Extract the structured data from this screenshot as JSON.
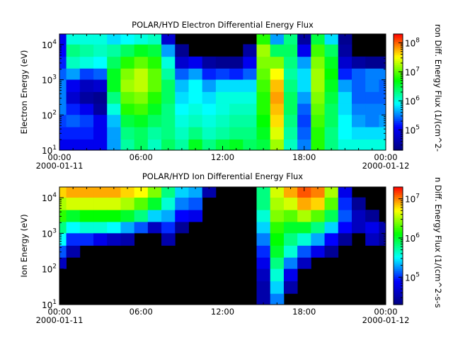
{
  "chart_data": [
    {
      "type": "heatmap",
      "title": "POLAR/HYD  Electron Differential Energy Flux",
      "ylabel": "Electron Energy (eV)",
      "colorbar_label": "ron Diff. Energy Flux (1/(cm^2-",
      "xlim": [
        "2000-01-11 00:00",
        "2000-01-12 00:00"
      ],
      "x_ticks": [
        "00:00",
        "06:00",
        "12:00",
        "18:00",
        "00:00"
      ],
      "x_date_left": "2000-01-11",
      "x_date_right": "2000-01-12",
      "y_scale": "log",
      "ylim": [
        10,
        20000
      ],
      "y_ticks": [
        {
          "value": 10,
          "base": "10",
          "exp": "1"
        },
        {
          "value": 100,
          "base": "10",
          "exp": "2"
        },
        {
          "value": 1000,
          "base": "10",
          "exp": "3"
        },
        {
          "value": 10000,
          "base": "10",
          "exp": "4"
        }
      ],
      "colorbar_scale": "log",
      "colorbar_range": [
        20000,
        200000000
      ],
      "colorbar_ticks": [
        {
          "value": 100000,
          "base": "10",
          "exp": "5"
        },
        {
          "value": 1000000,
          "base": "10",
          "exp": "6"
        },
        {
          "value": 10000000,
          "base": "10",
          "exp": "7"
        },
        {
          "value": 100000000,
          "base": "10",
          "exp": "8"
        }
      ],
      "colormap": [
        "#000080",
        "#0000ff",
        "#00ffff",
        "#00ff00",
        "#ffff00",
        "#ff0000"
      ],
      "background_color": "#000000",
      "time_hours": [
        0,
        1,
        2,
        3,
        4,
        5,
        6,
        7,
        8,
        9,
        10,
        11,
        12,
        13,
        14,
        15,
        16,
        17,
        18,
        19,
        20,
        21,
        22,
        23,
        24
      ],
      "energy_ev": [
        14,
        30,
        70,
        150,
        300,
        700,
        1500,
        3000,
        7000,
        15000
      ],
      "log10_flux": [
        [
          5.0,
          5.2,
          5.3,
          5.5,
          5.5,
          5.5,
          5.4,
          5.2,
          5.1,
          5.0
        ],
        [
          5.0,
          5.2,
          5.4,
          5.2,
          4.8,
          5.0,
          5.6,
          6.1,
          6.3,
          6.0
        ],
        [
          5.0,
          5.2,
          5.3,
          5.0,
          4.5,
          4.7,
          5.3,
          6.0,
          6.2,
          6.0
        ],
        [
          5.0,
          5.0,
          5.0,
          4.5,
          4.4,
          4.8,
          5.4,
          5.9,
          6.1,
          6.0
        ],
        [
          5.6,
          5.6,
          5.7,
          6.0,
          6.3,
          6.6,
          6.6,
          6.4,
          6.2,
          5.8
        ],
        [
          6.2,
          6.3,
          6.5,
          6.8,
          7.0,
          7.2,
          7.1,
          6.8,
          6.4,
          5.9
        ],
        [
          6.4,
          6.4,
          6.6,
          6.9,
          7.1,
          7.3,
          7.3,
          7.0,
          6.6,
          6.0
        ],
        [
          6.1,
          6.2,
          6.4,
          6.6,
          6.8,
          7.0,
          7.0,
          6.8,
          6.5,
          6.1
        ],
        [
          6.4,
          6.3,
          6.3,
          6.3,
          6.4,
          6.4,
          6.2,
          6.0,
          5.6,
          4.8
        ],
        [
          6.2,
          6.1,
          6.0,
          5.9,
          5.8,
          5.7,
          5.4,
          4.8,
          4.4,
          4.0
        ],
        [
          6.6,
          6.3,
          6.1,
          6.0,
          5.9,
          5.9,
          5.6,
          5.0,
          4.0,
          4.0
        ],
        [
          6.3,
          6.1,
          6.0,
          5.9,
          5.8,
          5.6,
          5.2,
          4.5,
          4.0,
          4.0
        ],
        [
          6.5,
          6.2,
          6.1,
          6.0,
          6.0,
          5.8,
          5.3,
          4.4,
          4.0,
          4.0
        ],
        [
          6.6,
          6.3,
          6.2,
          6.1,
          6.0,
          5.8,
          5.2,
          4.4,
          4.0,
          4.0
        ],
        [
          6.4,
          6.3,
          6.2,
          6.1,
          6.0,
          5.8,
          5.4,
          5.0,
          4.5,
          4.0
        ],
        [
          6.5,
          6.6,
          6.7,
          6.8,
          6.8,
          6.9,
          7.0,
          7.1,
          7.2,
          6.8
        ],
        [
          7.2,
          7.4,
          7.6,
          7.7,
          7.8,
          7.7,
          7.5,
          7.1,
          6.4,
          5.6
        ],
        [
          6.1,
          6.2,
          6.3,
          6.4,
          6.4,
          6.3,
          6.2,
          6.3,
          6.4,
          6.3
        ],
        [
          5.5,
          5.4,
          5.3,
          5.4,
          5.6,
          5.8,
          5.8,
          5.6,
          5.0,
          4.5
        ],
        [
          6.8,
          6.8,
          6.9,
          7.0,
          7.1,
          7.2,
          7.2,
          7.1,
          6.9,
          6.5
        ],
        [
          6.3,
          6.3,
          6.4,
          6.4,
          6.5,
          6.6,
          6.7,
          6.6,
          6.4,
          5.8
        ],
        [
          6.0,
          5.9,
          5.9,
          5.8,
          5.8,
          5.6,
          5.2,
          4.8,
          4.5,
          4.4
        ],
        [
          6.0,
          5.8,
          5.6,
          5.5,
          5.4,
          5.4,
          5.4,
          4.5,
          4.0,
          4.0
        ],
        [
          6.0,
          5.8,
          5.5,
          5.5,
          5.4,
          5.5,
          5.5,
          4.4,
          4.0,
          4.0
        ],
        [
          6.0,
          5.8,
          5.6,
          5.5,
          5.4,
          5.4,
          5.5,
          4.4,
          4.0,
          4.0
        ]
      ]
    },
    {
      "type": "heatmap",
      "title": "POLAR/HYD  Ion Differential Energy Flux",
      "ylabel": "Ion Energy (eV)",
      "colorbar_label": "n Diff. Energy Flux (1/(cm^2-s-s",
      "xlim": [
        "2000-01-11 00:00",
        "2000-01-12 00:00"
      ],
      "x_ticks": [
        "00:00",
        "06:00",
        "12:00",
        "18:00",
        "00:00"
      ],
      "x_date_left": "2000-01-11",
      "x_date_right": "2000-01-12",
      "y_scale": "log",
      "ylim": [
        10,
        20000
      ],
      "y_ticks": [
        {
          "value": 10,
          "base": "10",
          "exp": "1"
        },
        {
          "value": 100,
          "base": "10",
          "exp": "2"
        },
        {
          "value": 1000,
          "base": "10",
          "exp": "3"
        },
        {
          "value": 10000,
          "base": "10",
          "exp": "4"
        }
      ],
      "colorbar_scale": "log",
      "colorbar_range": [
        20000,
        20000000
      ],
      "colorbar_ticks": [
        {
          "value": 100000,
          "base": "10",
          "exp": "5"
        },
        {
          "value": 1000000,
          "base": "10",
          "exp": "6"
        },
        {
          "value": 10000000,
          "base": "10",
          "exp": "7"
        }
      ],
      "colormap": [
        "#000080",
        "#0000ff",
        "#00ffff",
        "#00ff00",
        "#ffff00",
        "#ff0000"
      ],
      "background_color": "#000000",
      "time_hours": [
        0,
        1,
        2,
        3,
        4,
        5,
        6,
        7,
        8,
        9,
        10,
        11,
        12,
        13,
        14,
        15,
        16,
        17,
        18,
        19,
        20,
        21,
        22,
        23,
        24
      ],
      "energy_ev": [
        14,
        30,
        70,
        150,
        300,
        700,
        1500,
        3000,
        7000,
        15000
      ],
      "log10_flux": [
        [
          4.0,
          4.0,
          4.0,
          4.6,
          5.1,
          5.5,
          5.8,
          6.2,
          6.5,
          6.8
        ],
        [
          4.0,
          4.0,
          4.0,
          4.0,
          4.5,
          5.0,
          5.5,
          6.0,
          6.6,
          6.9
        ],
        [
          4.0,
          4.0,
          4.0,
          4.0,
          4.3,
          5.0,
          5.6,
          6.1,
          6.6,
          6.9
        ],
        [
          4.0,
          4.0,
          4.0,
          4.0,
          4.0,
          4.8,
          5.6,
          6.1,
          6.6,
          6.9
        ],
        [
          4.0,
          4.0,
          4.0,
          4.0,
          4.0,
          4.6,
          5.5,
          6.1,
          6.6,
          6.9
        ],
        [
          4.0,
          4.0,
          4.0,
          4.0,
          4.0,
          4.5,
          5.3,
          6.0,
          6.5,
          6.8
        ],
        [
          4.0,
          4.0,
          4.0,
          4.0,
          4.0,
          4.3,
          5.1,
          5.8,
          6.3,
          6.7
        ],
        [
          4.0,
          4.0,
          4.0,
          4.0,
          4.0,
          4.0,
          4.6,
          5.4,
          6.0,
          6.4
        ],
        [
          4.0,
          4.0,
          4.0,
          4.0,
          4.0,
          4.5,
          5.0,
          5.3,
          5.6,
          5.8
        ],
        [
          4.0,
          4.0,
          4.0,
          4.0,
          4.0,
          4.0,
          4.4,
          4.9,
          5.2,
          5.4
        ],
        [
          4.0,
          4.0,
          4.0,
          4.0,
          4.0,
          4.0,
          4.0,
          4.8,
          5.1,
          5.3
        ],
        [
          4.0,
          4.0,
          4.0,
          4.0,
          4.0,
          4.0,
          4.0,
          4.0,
          4.2,
          4.5
        ],
        [
          4.0,
          4.0,
          4.0,
          4.0,
          4.0,
          4.0,
          4.0,
          4.0,
          4.0,
          4.0
        ],
        [
          4.0,
          4.0,
          4.0,
          4.0,
          4.0,
          4.0,
          4.0,
          4.0,
          4.0,
          4.0
        ],
        [
          4.0,
          4.0,
          4.0,
          4.0,
          4.0,
          4.0,
          4.0,
          4.0,
          4.0,
          4.0
        ],
        [
          4.5,
          4.5,
          4.6,
          4.8,
          5.0,
          5.2,
          5.4,
          5.6,
          5.8,
          5.8
        ],
        [
          5.2,
          5.4,
          5.6,
          5.8,
          6.0,
          6.1,
          6.2,
          6.4,
          6.5,
          6.6
        ],
        [
          4.3,
          4.5,
          4.8,
          5.2,
          5.6,
          5.8,
          6.0,
          6.3,
          6.6,
          6.9
        ],
        [
          4.0,
          4.0,
          4.2,
          4.6,
          5.1,
          5.6,
          6.0,
          6.5,
          6.9,
          7.1
        ],
        [
          4.0,
          4.0,
          4.0,
          4.3,
          4.8,
          5.3,
          5.8,
          6.3,
          6.8,
          7.0
        ],
        [
          4.0,
          4.0,
          4.0,
          4.0,
          4.4,
          4.9,
          5.4,
          5.9,
          6.3,
          6.5
        ],
        [
          4.0,
          4.0,
          4.0,
          4.0,
          4.0,
          4.4,
          4.9,
          5.1,
          5.0,
          4.8
        ],
        [
          4.0,
          4.0,
          4.0,
          4.0,
          4.0,
          4.0,
          4.6,
          4.6,
          4.4,
          4.0
        ],
        [
          4.0,
          4.0,
          4.0,
          4.0,
          4.0,
          4.6,
          4.8,
          4.4,
          4.0,
          4.0
        ],
        [
          4.0,
          4.0,
          4.0,
          4.0,
          4.0,
          4.4,
          4.5,
          4.2,
          4.0,
          4.0
        ]
      ]
    }
  ]
}
